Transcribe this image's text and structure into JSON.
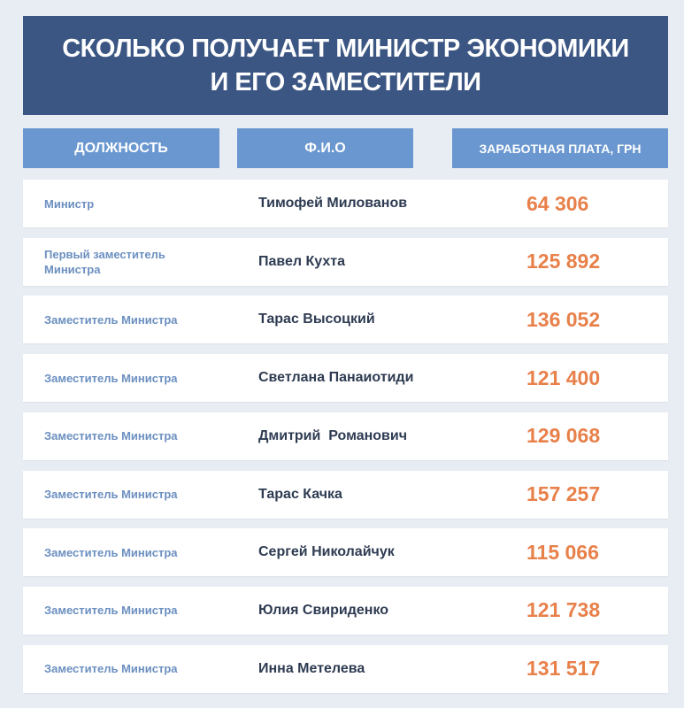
{
  "title": {
    "line1": "СКОЛЬКО ПОЛУЧАЕТ МИНИСТР ЭКОНОМИКИ",
    "line2": "И ЕГО ЗАМЕСТИТЕЛИ"
  },
  "headers": [
    "ДОЛЖНОСТЬ",
    "Ф.И.О",
    "ЗАРАБОТНАЯ ПЛАТА, ГРН"
  ],
  "rows": [
    {
      "position": "Министр",
      "name": "Тимофей Милованов",
      "salary": "64 306"
    },
    {
      "position": "Первый заместитель Министра",
      "name": "Павел Кухта",
      "salary": "125 892"
    },
    {
      "position": "Заместитель Министра",
      "name": "Тарас Высоцкий",
      "salary": "136 052"
    },
    {
      "position": "Заместитель Министра",
      "name": "Светлана Панаиотиди",
      "salary": "121 400"
    },
    {
      "position": "Заместитель Министра",
      "name": "Дмитрий  Романович",
      "salary": "129 068"
    },
    {
      "position": "Заместитель Министра",
      "name": "Тарас Качка",
      "salary": "157 257"
    },
    {
      "position": "Заместитель Министра",
      "name": "Сергей Николайчук",
      "salary": "115 066"
    },
    {
      "position": "Заместитель Министра",
      "name": "Юлия Свириденко",
      "salary": "121 738"
    },
    {
      "position": "Заместитель Министра",
      "name": "Инна Метелева",
      "salary": "131 517"
    }
  ],
  "colors": {
    "title_bg": "#3b5683",
    "header_bg": "#6a97d0",
    "salary": "#e8804a",
    "position": "#6b8fc0",
    "name": "#2e3b52",
    "background": "#e8edf3"
  }
}
